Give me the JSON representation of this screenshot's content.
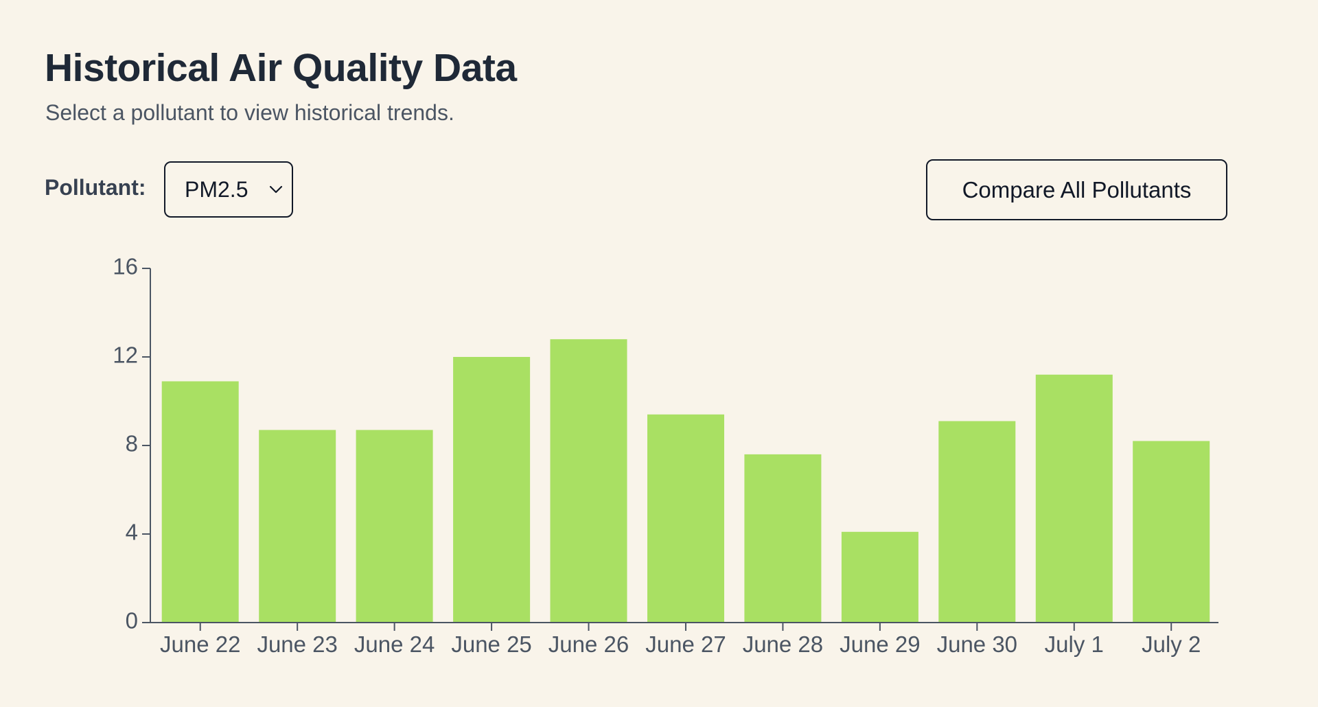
{
  "header": {
    "title": "Historical Air Quality Data",
    "subtitle": "Select a pollutant to view historical trends."
  },
  "controls": {
    "pollutant_label": "Pollutant:",
    "selected_pollutant": "PM2.5",
    "compare_button_label": "Compare All Pollutants"
  },
  "colors": {
    "bar": "#a9e063",
    "axis": "#4b5563",
    "background": "#f9f4ea"
  },
  "chart_data": {
    "type": "bar",
    "categories": [
      "June 22",
      "June 23",
      "June 24",
      "June 25",
      "June 26",
      "June 27",
      "June 28",
      "June 29",
      "June 30",
      "July 1",
      "July 2"
    ],
    "values": [
      10.9,
      8.7,
      8.7,
      12.0,
      12.8,
      9.4,
      7.6,
      4.1,
      9.1,
      11.2,
      8.2
    ],
    "ylim": [
      0,
      16
    ],
    "yticks": [
      0,
      4,
      8,
      12,
      16
    ],
    "title": "",
    "xlabel": "",
    "ylabel": "",
    "grid": false
  }
}
